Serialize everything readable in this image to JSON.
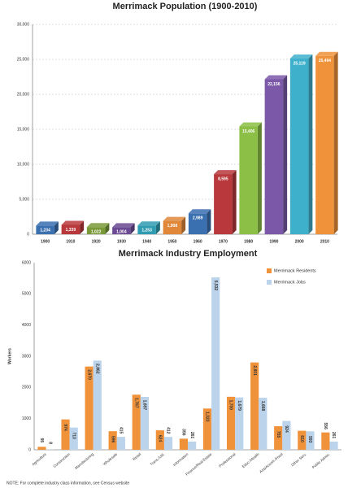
{
  "chart_data": [
    {
      "type": "bar",
      "title": "Merrimack Population (1900-2010)",
      "categories": [
        "1900",
        "1910",
        "1920",
        "1930",
        "1940",
        "1950",
        "1960",
        "1970",
        "1980",
        "1990",
        "2000",
        "2010"
      ],
      "values": [
        1234,
        1339,
        1022,
        1004,
        1253,
        1908,
        2989,
        8595,
        15406,
        22156,
        25119,
        25494
      ],
      "value_labels": [
        "1,234",
        "1,339",
        "1,022",
        "1,004",
        "1,253",
        "1,908",
        "2,989",
        "8,595",
        "15,406",
        "22,156",
        "25,119",
        "25,494"
      ],
      "colors": [
        "#3a6fb0",
        "#b8383b",
        "#7a9a3a",
        "#6b4a93",
        "#2f9bb0",
        "#e0873a",
        "#3a6fb0",
        "#b8383b",
        "#8cbf45",
        "#7b58a8",
        "#3fb0cc",
        "#f0923a"
      ],
      "ylim": [
        0,
        30000
      ],
      "yticks": [
        0,
        {
          "value": 5000,
          "label": "5,000"
        },
        {
          "value": 10000,
          "label": "10,000"
        },
        {
          "value": 15000,
          "label": "15,000"
        },
        {
          "value": 20000,
          "label": "20,000"
        },
        {
          "value": 25000,
          "label": "25,000"
        },
        {
          "value": 30000,
          "label": "30,000"
        }
      ],
      "grid": true
    },
    {
      "type": "bar",
      "title": "Merrimack Industry Employment",
      "y_label": "Workers",
      "categories": [
        "Agriculture",
        "Construction",
        "Manufacturing",
        "Wholesale",
        "Retail",
        "Trans./Util.",
        "Information",
        "Finance/Real Estate",
        "Professional",
        "Educ./Health",
        "Arts/Accom./Food",
        "Other Serv.",
        "Public Admin."
      ],
      "series": [
        {
          "name": "Merrimack Residents",
          "color": "#f0923a",
          "values": [
            95,
            974,
            2670,
            596,
            1767,
            624,
            356,
            1323,
            1700,
            2801,
            755,
            610,
            556
          ],
          "value_labels": [
            "95",
            "974",
            "2,670",
            "596",
            "1,767",
            "624",
            "356",
            "1,323",
            "1,700",
            "2,801",
            "755",
            "610",
            "556"
          ]
        },
        {
          "name": "Merrimack Jobs",
          "color": "#bcd3ec",
          "values": [
            8,
            713,
            2862,
            415,
            1697,
            412,
            261,
            5532,
            1679,
            1668,
            924,
            593,
            261
          ],
          "value_labels": [
            "8",
            "713",
            "2,862",
            "415",
            "1,697",
            "412",
            "261",
            "5,532",
            "1,679",
            "1,668",
            "924",
            "593",
            "261"
          ]
        }
      ],
      "ylim": [
        0,
        6000
      ],
      "yticks": [
        0,
        1000,
        2000,
        3000,
        4000,
        5000,
        6000
      ],
      "grid": false,
      "legend": "top-right",
      "note": "NOTE: For complete industry class information, see Census website"
    }
  ]
}
